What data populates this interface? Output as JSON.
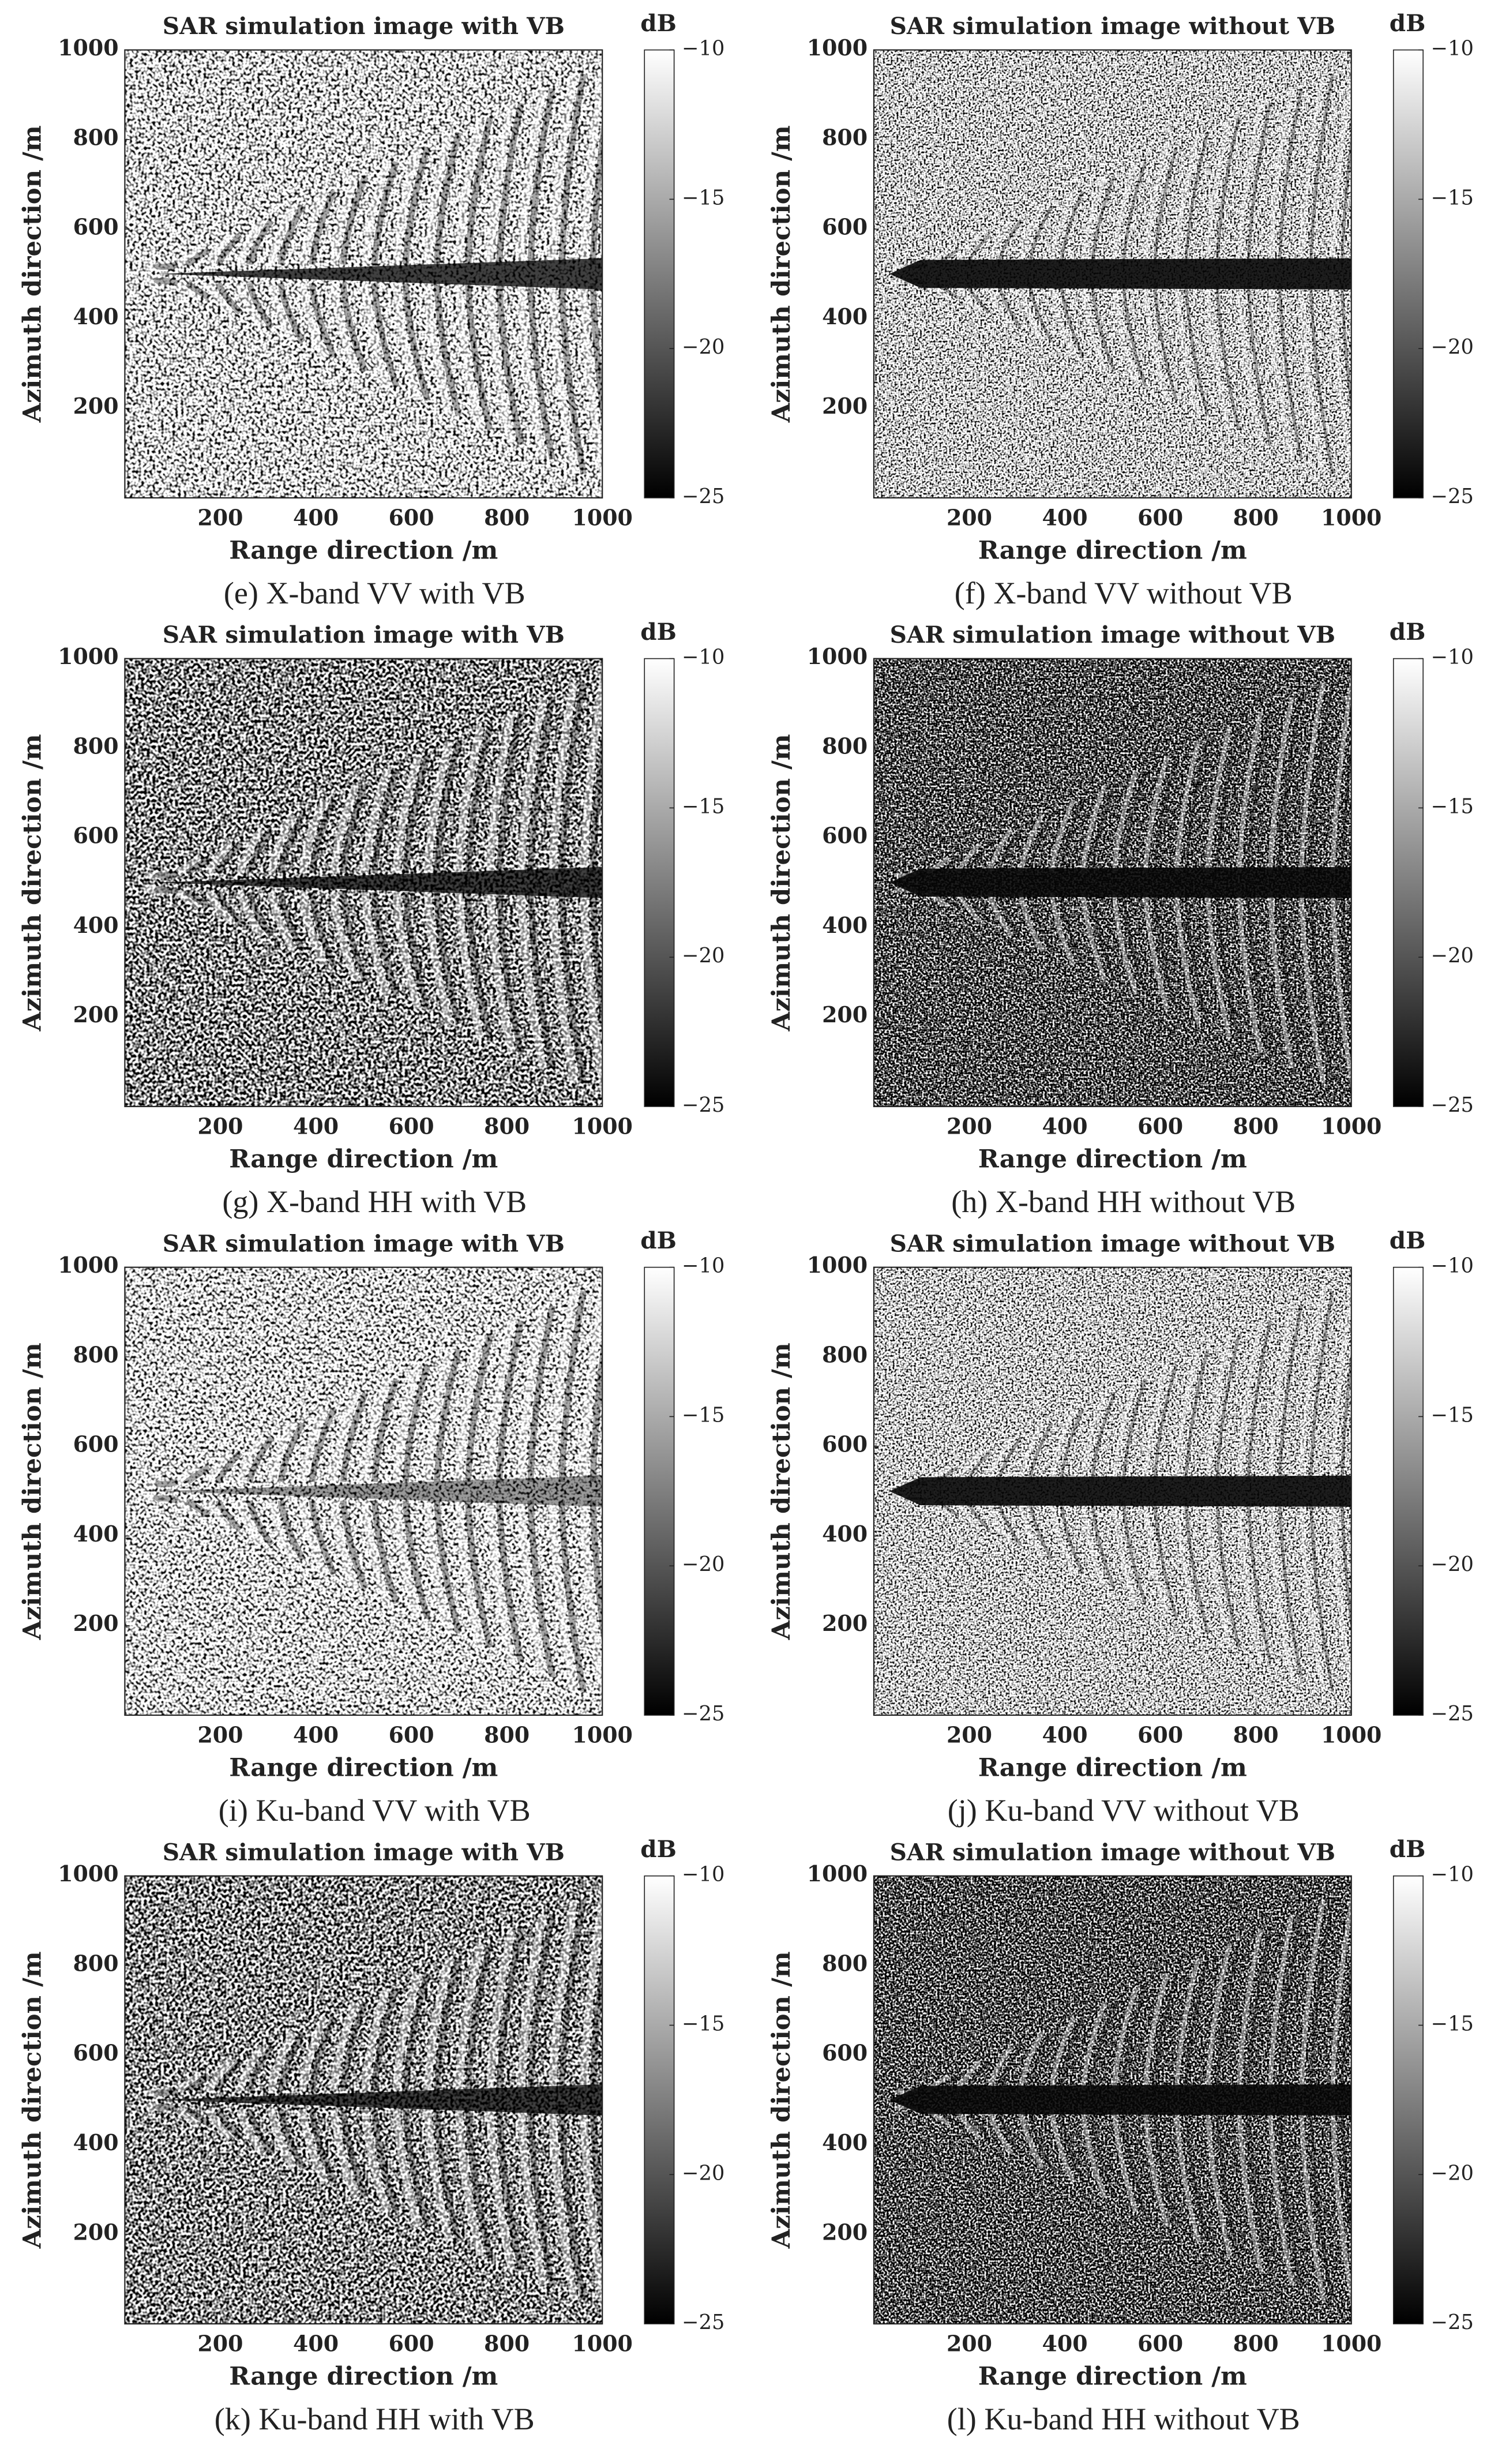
{
  "chart_data": [
    {
      "type": "heatmap",
      "title": "SAR simulation image with VB",
      "xlabel": "Range direction /m",
      "ylabel": "Azimuth direction /m",
      "xlim": [
        0,
        1000
      ],
      "ylim": [
        0,
        1000
      ],
      "xticks": [
        200,
        400,
        600,
        800,
        1000
      ],
      "yticks": [
        200,
        400,
        600,
        800,
        1000
      ],
      "colorbar": {
        "label": "dB",
        "clim": [
          -25,
          -10
        ],
        "ticks": [
          {
            "value": -10,
            "label": "−10"
          },
          {
            "value": -15,
            "label": "−15"
          },
          {
            "value": -20,
            "label": "−20"
          },
          {
            "value": -25,
            "label": "−25"
          }
        ]
      },
      "caption": "(e) X-band VV with VB"
    },
    {
      "type": "heatmap",
      "title": "SAR simulation image without VB",
      "xlabel": "Range direction /m",
      "ylabel": "Azimuth direction /m",
      "xlim": [
        0,
        1000
      ],
      "ylim": [
        0,
        1000
      ],
      "xticks": [
        200,
        400,
        600,
        800,
        1000
      ],
      "yticks": [
        200,
        400,
        600,
        800,
        1000
      ],
      "colorbar": {
        "label": "dB",
        "clim": [
          -25,
          -10
        ],
        "ticks": [
          {
            "value": -10,
            "label": "−10"
          },
          {
            "value": -15,
            "label": "−15"
          },
          {
            "value": -20,
            "label": "−20"
          },
          {
            "value": -25,
            "label": "−25"
          }
        ]
      },
      "caption": "(f) X-band VV without VB"
    },
    {
      "type": "heatmap",
      "title": "SAR simulation image with VB",
      "xlabel": "Range direction /m",
      "ylabel": "Azimuth direction /m",
      "xlim": [
        0,
        1000
      ],
      "ylim": [
        0,
        1000
      ],
      "xticks": [
        200,
        400,
        600,
        800,
        1000
      ],
      "yticks": [
        200,
        400,
        600,
        800,
        1000
      ],
      "colorbar": {
        "label": "dB",
        "clim": [
          -25,
          -10
        ],
        "ticks": [
          {
            "value": -10,
            "label": "−10"
          },
          {
            "value": -15,
            "label": "−15"
          },
          {
            "value": -20,
            "label": "−20"
          },
          {
            "value": -25,
            "label": "−25"
          }
        ]
      },
      "caption": "(g) X-band HH with VB"
    },
    {
      "type": "heatmap",
      "title": "SAR simulation image without VB",
      "xlabel": "Range direction /m",
      "ylabel": "Azimuth direction /m",
      "xlim": [
        0,
        1000
      ],
      "ylim": [
        0,
        1000
      ],
      "xticks": [
        200,
        400,
        600,
        800,
        1000
      ],
      "yticks": [
        200,
        400,
        600,
        800,
        1000
      ],
      "colorbar": {
        "label": "dB",
        "clim": [
          -25,
          -10
        ],
        "ticks": [
          {
            "value": -10,
            "label": "−10"
          },
          {
            "value": -15,
            "label": "−15"
          },
          {
            "value": -20,
            "label": "−20"
          },
          {
            "value": -25,
            "label": "−25"
          }
        ]
      },
      "caption": "(h) X-band HH without VB"
    },
    {
      "type": "heatmap",
      "title": "SAR simulation image with VB",
      "xlabel": "Range direction /m",
      "ylabel": "Azimuth direction /m",
      "xlim": [
        0,
        1000
      ],
      "ylim": [
        0,
        1000
      ],
      "xticks": [
        200,
        400,
        600,
        800,
        1000
      ],
      "yticks": [
        200,
        400,
        600,
        800,
        1000
      ],
      "colorbar": {
        "label": "dB",
        "clim": [
          -25,
          -10
        ],
        "ticks": [
          {
            "value": -10,
            "label": "−10"
          },
          {
            "value": -15,
            "label": "−15"
          },
          {
            "value": -20,
            "label": "−20"
          },
          {
            "value": -25,
            "label": "−25"
          }
        ]
      },
      "caption": "(i) Ku-band VV with VB"
    },
    {
      "type": "heatmap",
      "title": "SAR simulation image without VB",
      "xlabel": "Range direction /m",
      "ylabel": "Azimuth direction /m",
      "xlim": [
        0,
        1000
      ],
      "ylim": [
        0,
        1000
      ],
      "xticks": [
        200,
        400,
        600,
        800,
        1000
      ],
      "yticks": [
        200,
        400,
        600,
        800,
        1000
      ],
      "colorbar": {
        "label": "dB",
        "clim": [
          -25,
          -10
        ],
        "ticks": [
          {
            "value": -10,
            "label": "−10"
          },
          {
            "value": -15,
            "label": "−15"
          },
          {
            "value": -20,
            "label": "−20"
          },
          {
            "value": -25,
            "label": "−25"
          }
        ]
      },
      "caption": "(j) Ku-band VV without VB"
    },
    {
      "type": "heatmap",
      "title": "SAR simulation image with VB",
      "xlabel": "Range direction /m",
      "ylabel": "Azimuth direction /m",
      "xlim": [
        0,
        1000
      ],
      "ylim": [
        0,
        1000
      ],
      "xticks": [
        200,
        400,
        600,
        800,
        1000
      ],
      "yticks": [
        200,
        400,
        600,
        800,
        1000
      ],
      "colorbar": {
        "label": "dB",
        "clim": [
          -25,
          -10
        ],
        "ticks": [
          {
            "value": -10,
            "label": "−10"
          },
          {
            "value": -15,
            "label": "−15"
          },
          {
            "value": -20,
            "label": "−20"
          },
          {
            "value": -25,
            "label": "−25"
          }
        ]
      },
      "caption": "(k) Ku-band HH with VB"
    },
    {
      "type": "heatmap",
      "title": "SAR simulation image without VB",
      "xlabel": "Range direction /m",
      "ylabel": "Azimuth direction /m",
      "xlim": [
        0,
        1000
      ],
      "ylim": [
        0,
        1000
      ],
      "xticks": [
        200,
        400,
        600,
        800,
        1000
      ],
      "yticks": [
        200,
        400,
        600,
        800,
        1000
      ],
      "colorbar": {
        "label": "dB",
        "clim": [
          -25,
          -10
        ],
        "ticks": [
          {
            "value": -10,
            "label": "−10"
          },
          {
            "value": -15,
            "label": "−15"
          },
          {
            "value": -20,
            "label": "−20"
          },
          {
            "value": -25,
            "label": "−25"
          }
        ]
      },
      "caption": "(l) Ku-band HH without VB"
    }
  ]
}
